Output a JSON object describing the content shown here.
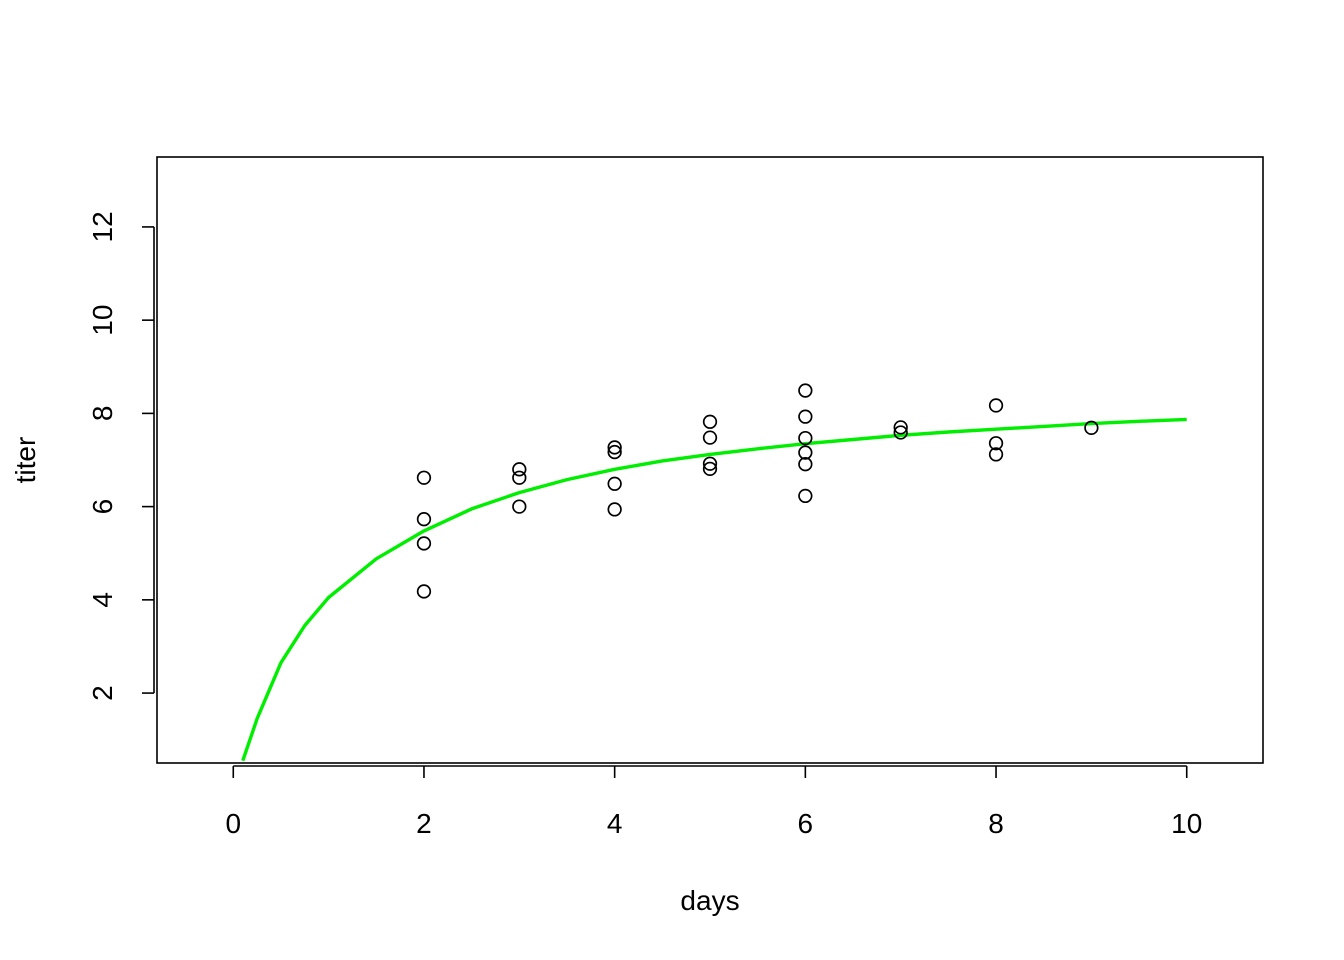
{
  "chart_data": {
    "type": "scatter",
    "title": "",
    "xlabel": "days",
    "ylabel": "titer",
    "xlim": [
      -0.8,
      10.8
    ],
    "ylim": [
      0.5,
      13.5
    ],
    "x_ticks": [
      0,
      2,
      4,
      6,
      8,
      10
    ],
    "y_ticks": [
      2,
      4,
      6,
      8,
      10,
      12
    ],
    "grid": false,
    "legend": "none",
    "point_color": "#000000",
    "curve_color": "#00ee00",
    "points": [
      {
        "x": 2,
        "y": 6.62
      },
      {
        "x": 2,
        "y": 5.73
      },
      {
        "x": 2,
        "y": 5.21
      },
      {
        "x": 2,
        "y": 4.18
      },
      {
        "x": 3,
        "y": 6.8
      },
      {
        "x": 3,
        "y": 6.62
      },
      {
        "x": 3,
        "y": 6.0
      },
      {
        "x": 4,
        "y": 7.27
      },
      {
        "x": 4,
        "y": 7.17
      },
      {
        "x": 4,
        "y": 6.49
      },
      {
        "x": 4,
        "y": 5.94
      },
      {
        "x": 5,
        "y": 7.82
      },
      {
        "x": 5,
        "y": 7.48
      },
      {
        "x": 5,
        "y": 6.92
      },
      {
        "x": 5,
        "y": 6.81
      },
      {
        "x": 6,
        "y": 8.49
      },
      {
        "x": 6,
        "y": 7.93
      },
      {
        "x": 6,
        "y": 7.47
      },
      {
        "x": 6,
        "y": 7.16
      },
      {
        "x": 6,
        "y": 6.91
      },
      {
        "x": 6,
        "y": 6.23
      },
      {
        "x": 7,
        "y": 7.7
      },
      {
        "x": 7,
        "y": 7.59
      },
      {
        "x": 8,
        "y": 8.17
      },
      {
        "x": 8,
        "y": 7.36
      },
      {
        "x": 8,
        "y": 7.12
      },
      {
        "x": 9,
        "y": 7.69
      }
    ],
    "curve": [
      {
        "x": 0.1,
        "y": 0.55
      },
      {
        "x": 0.25,
        "y": 1.45
      },
      {
        "x": 0.5,
        "y": 2.65
      },
      {
        "x": 0.75,
        "y": 3.45
      },
      {
        "x": 1.0,
        "y": 4.05
      },
      {
        "x": 1.5,
        "y": 4.88
      },
      {
        "x": 2.0,
        "y": 5.48
      },
      {
        "x": 2.5,
        "y": 5.95
      },
      {
        "x": 3.0,
        "y": 6.3
      },
      {
        "x": 3.5,
        "y": 6.58
      },
      {
        "x": 4.0,
        "y": 6.8
      },
      {
        "x": 4.5,
        "y": 6.98
      },
      {
        "x": 5.0,
        "y": 7.12
      },
      {
        "x": 5.5,
        "y": 7.24
      },
      {
        "x": 6.0,
        "y": 7.35
      },
      {
        "x": 6.5,
        "y": 7.44
      },
      {
        "x": 7.0,
        "y": 7.53
      },
      {
        "x": 7.5,
        "y": 7.6
      },
      {
        "x": 8.0,
        "y": 7.66
      },
      {
        "x": 8.5,
        "y": 7.72
      },
      {
        "x": 9.0,
        "y": 7.78
      },
      {
        "x": 9.5,
        "y": 7.83
      },
      {
        "x": 10.0,
        "y": 7.87
      }
    ]
  }
}
